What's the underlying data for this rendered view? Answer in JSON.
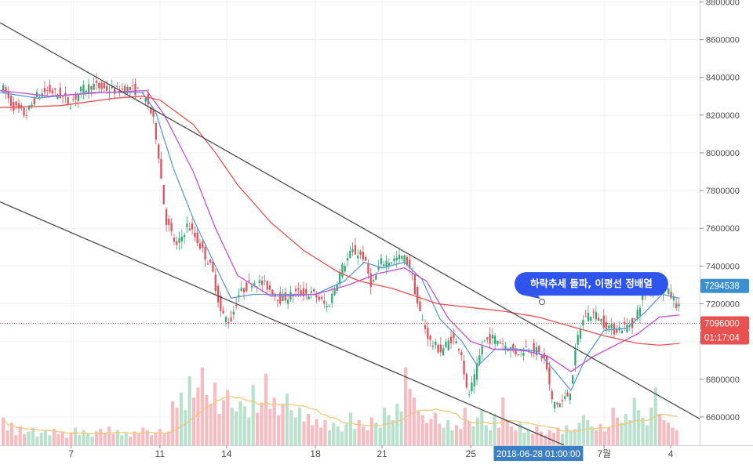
{
  "chart_data": {
    "type": "candlestick",
    "title": "",
    "y_axis": {
      "ticks": [
        6600000,
        6800000,
        7000000,
        7200000,
        7400000,
        7600000,
        7800000,
        8000000,
        8200000,
        8400000,
        8600000,
        8800000
      ],
      "tick_labels": [
        "6600000",
        "6800000",
        "7000000",
        "7200000",
        "7400000",
        "7600000",
        "7800000",
        "8000000",
        "8200000",
        "8400000",
        "8600000",
        "8800000"
      ],
      "ylim": [
        6450000,
        8810000
      ]
    },
    "x_axis": {
      "ticks": [
        {
          "day": 7,
          "label": "7"
        },
        {
          "day": 11,
          "label": "11"
        },
        {
          "day": 14,
          "label": "14"
        },
        {
          "day": 18,
          "label": "18"
        },
        {
          "day": 21,
          "label": "21"
        },
        {
          "day": 25,
          "label": "25"
        },
        {
          "day": 31,
          "label": "7월"
        },
        {
          "day": 34,
          "label": "4"
        }
      ],
      "xlim": [
        3.8,
        35.3
      ],
      "crosshair_label": "2018-06-28 01:00:00",
      "crosshair_day": 28.04
    },
    "price_path": [
      [
        3.8,
        8380000
      ],
      [
        4.4,
        8250000
      ],
      [
        5.0,
        8200000
      ],
      [
        5.5,
        8300000
      ],
      [
        6.0,
        8330000
      ],
      [
        6.5,
        8310000
      ],
      [
        7.0,
        8260000
      ],
      [
        7.5,
        8330000
      ],
      [
        8.0,
        8360000
      ],
      [
        8.5,
        8340000
      ],
      [
        9.0,
        8330000
      ],
      [
        9.5,
        8340000
      ],
      [
        10.0,
        8330000
      ],
      [
        10.5,
        8270000
      ],
      [
        10.8,
        8150000
      ],
      [
        11.0,
        7980000
      ],
      [
        11.3,
        7650000
      ],
      [
        11.8,
        7500000
      ],
      [
        12.3,
        7620000
      ],
      [
        12.8,
        7520000
      ],
      [
        13.4,
        7380000
      ],
      [
        13.8,
        7150000
      ],
      [
        14.2,
        7100000
      ],
      [
        14.6,
        7250000
      ],
      [
        15.2,
        7320000
      ],
      [
        15.8,
        7300000
      ],
      [
        16.5,
        7220000
      ],
      [
        17.2,
        7260000
      ],
      [
        18.0,
        7250000
      ],
      [
        18.6,
        7180000
      ],
      [
        19.2,
        7380000
      ],
      [
        19.7,
        7480000
      ],
      [
        20.2,
        7450000
      ],
      [
        20.6,
        7290000
      ],
      [
        21.0,
        7420000
      ],
      [
        21.5,
        7430000
      ],
      [
        22.0,
        7450000
      ],
      [
        22.3,
        7400000
      ],
      [
        22.7,
        7170000
      ],
      [
        23.2,
        7000000
      ],
      [
        23.7,
        6950000
      ],
      [
        24.2,
        7020000
      ],
      [
        24.6,
        6960000
      ],
      [
        24.9,
        6700000
      ],
      [
        25.2,
        6800000
      ],
      [
        25.6,
        7000000
      ],
      [
        26.1,
        7020000
      ],
      [
        26.6,
        6980000
      ],
      [
        27.1,
        6940000
      ],
      [
        27.6,
        6970000
      ],
      [
        28.0,
        6950000
      ],
      [
        28.4,
        6900000
      ],
      [
        28.7,
        6680000
      ],
      [
        29.1,
        6670000
      ],
      [
        29.5,
        6730000
      ],
      [
        29.9,
        7050000
      ],
      [
        30.2,
        7140000
      ],
      [
        30.6,
        7150000
      ],
      [
        31.0,
        7100000
      ],
      [
        31.5,
        7060000
      ],
      [
        32.0,
        7080000
      ],
      [
        32.4,
        7100000
      ],
      [
        32.8,
        7250000
      ],
      [
        33.3,
        7300000
      ],
      [
        33.8,
        7280000
      ],
      [
        34.2,
        7220000
      ],
      [
        34.4,
        7180000
      ]
    ],
    "moving_averages": [
      {
        "color": "#5b9bd5",
        "path": [
          [
            3.8,
            8320000
          ],
          [
            5.5,
            8290000
          ],
          [
            8.0,
            8320000
          ],
          [
            10.2,
            8320000
          ],
          [
            10.8,
            8220000
          ],
          [
            11.6,
            7920000
          ],
          [
            12.5,
            7650000
          ],
          [
            13.5,
            7400000
          ],
          [
            14.2,
            7230000
          ],
          [
            15.2,
            7250000
          ],
          [
            16.5,
            7250000
          ],
          [
            18.0,
            7250000
          ],
          [
            19.3,
            7320000
          ],
          [
            20.2,
            7420000
          ],
          [
            21.0,
            7390000
          ],
          [
            22.0,
            7420000
          ],
          [
            22.8,
            7330000
          ],
          [
            23.6,
            7120000
          ],
          [
            24.6,
            7000000
          ],
          [
            25.3,
            6870000
          ],
          [
            26.1,
            6960000
          ],
          [
            27.1,
            6960000
          ],
          [
            28.0,
            6950000
          ],
          [
            28.8,
            6840000
          ],
          [
            29.5,
            6740000
          ],
          [
            30.2,
            6920000
          ],
          [
            31.0,
            7060000
          ],
          [
            32.0,
            7070000
          ],
          [
            32.8,
            7150000
          ],
          [
            33.6,
            7250000
          ],
          [
            34.4,
            7230000
          ]
        ]
      },
      {
        "color": "#c44fd1",
        "path": [
          [
            3.8,
            8330000
          ],
          [
            6.0,
            8300000
          ],
          [
            8.5,
            8320000
          ],
          [
            10.4,
            8330000
          ],
          [
            11.2,
            8200000
          ],
          [
            12.5,
            7900000
          ],
          [
            13.5,
            7600000
          ],
          [
            14.5,
            7350000
          ],
          [
            16.0,
            7240000
          ],
          [
            18.0,
            7250000
          ],
          [
            19.5,
            7300000
          ],
          [
            20.8,
            7360000
          ],
          [
            22.0,
            7390000
          ],
          [
            23.0,
            7320000
          ],
          [
            24.0,
            7120000
          ],
          [
            25.0,
            7000000
          ],
          [
            26.0,
            6960000
          ],
          [
            27.5,
            6950000
          ],
          [
            28.5,
            6920000
          ],
          [
            29.5,
            6840000
          ],
          [
            30.5,
            6920000
          ],
          [
            31.5,
            6980000
          ],
          [
            32.5,
            7040000
          ],
          [
            33.5,
            7130000
          ],
          [
            34.4,
            7140000
          ]
        ]
      },
      {
        "color": "#e8514f",
        "path": [
          [
            3.8,
            8240000
          ],
          [
            6.5,
            8250000
          ],
          [
            9.0,
            8290000
          ],
          [
            10.2,
            8300000
          ],
          [
            11.0,
            8280000
          ],
          [
            12.5,
            8150000
          ],
          [
            13.5,
            8000000
          ],
          [
            14.5,
            7830000
          ],
          [
            16.0,
            7630000
          ],
          [
            17.5,
            7480000
          ],
          [
            19.0,
            7370000
          ],
          [
            20.0,
            7320000
          ],
          [
            21.5,
            7280000
          ],
          [
            23.5,
            7200000
          ],
          [
            25.0,
            7180000
          ],
          [
            26.5,
            7160000
          ],
          [
            28.0,
            7130000
          ],
          [
            29.5,
            7080000
          ],
          [
            31.0,
            7030000
          ],
          [
            32.5,
            6990000
          ],
          [
            33.5,
            6980000
          ],
          [
            34.4,
            6990000
          ]
        ]
      }
    ],
    "trendlines": [
      {
        "from": [
          3.8,
          8690000
        ],
        "to": [
          35.3,
          6590000
        ]
      },
      {
        "from": [
          3.8,
          7740000
        ],
        "to": [
          29.2,
          6450000
        ]
      }
    ],
    "volume": {
      "bar_heights": [
        0.22,
        0.12,
        0.18,
        0.08,
        0.15,
        0.09,
        0.11,
        0.14,
        0.07,
        0.1,
        0.12,
        0.08,
        0.13,
        0.09,
        0.11,
        0.06,
        0.1,
        0.14,
        0.08,
        0.12,
        0.09,
        0.07,
        0.11,
        0.13,
        0.1,
        0.15,
        0.09,
        0.12,
        0.08,
        0.1,
        0.07,
        0.11,
        0.09,
        0.14,
        0.12,
        0.08,
        0.1,
        0.13,
        0.09,
        0.11,
        0.35,
        0.3,
        0.42,
        0.28,
        0.55,
        0.38,
        0.46,
        0.62,
        0.4,
        0.33,
        0.5,
        0.25,
        0.36,
        0.44,
        0.3,
        0.27,
        0.35,
        0.31,
        0.22,
        0.48,
        0.26,
        0.34,
        0.57,
        0.29,
        0.38,
        0.24,
        0.33,
        0.41,
        0.28,
        0.22,
        0.3,
        0.19,
        0.25,
        0.16,
        0.21,
        0.14,
        0.2,
        0.12,
        0.18,
        0.15,
        0.11,
        0.17,
        0.26,
        0.13,
        0.2,
        0.15,
        0.12,
        0.22,
        0.18,
        0.14,
        0.3,
        0.24,
        0.2,
        0.33,
        0.27,
        0.62,
        0.45,
        0.38,
        0.28,
        0.24,
        0.18,
        0.21,
        0.26,
        0.17,
        0.14,
        0.2,
        0.12,
        0.16,
        0.13,
        0.3,
        0.19,
        0.15,
        0.22,
        0.28,
        0.16,
        0.12,
        0.25,
        0.14,
        0.38,
        0.2,
        0.15,
        0.12,
        0.18,
        0.1,
        0.13,
        0.09,
        0.15,
        0.11,
        0.08,
        0.12,
        0.1,
        0.14,
        0.09,
        0.16,
        0.11,
        0.13,
        0.18,
        0.24,
        0.2,
        0.15,
        0.12,
        0.17,
        0.11,
        0.14,
        0.3,
        0.22,
        0.18,
        0.25,
        0.2,
        0.38,
        0.28,
        0.22,
        0.16,
        0.3,
        0.46,
        0.25,
        0.2,
        0.18,
        0.14,
        0.12
      ],
      "average_line_color": "#f3c77b"
    },
    "annotations": [
      {
        "text": "하락추세 돌파, 이평선 정배열",
        "anchor": [
          28.2,
          7210000
        ]
      }
    ],
    "last_price": {
      "value": 7294538,
      "label": "7294538",
      "color": "#3b8fd0"
    },
    "current_price": {
      "value": 7096000,
      "label": "7096000",
      "color": "#e8514f"
    },
    "countdown": {
      "label": "01:17:04",
      "color": "#e8514f"
    },
    "colors": {
      "up": "#33a873",
      "down": "#e1515a",
      "up_volume": "#b9e1cc",
      "down_volume": "#f6bcc1"
    }
  }
}
